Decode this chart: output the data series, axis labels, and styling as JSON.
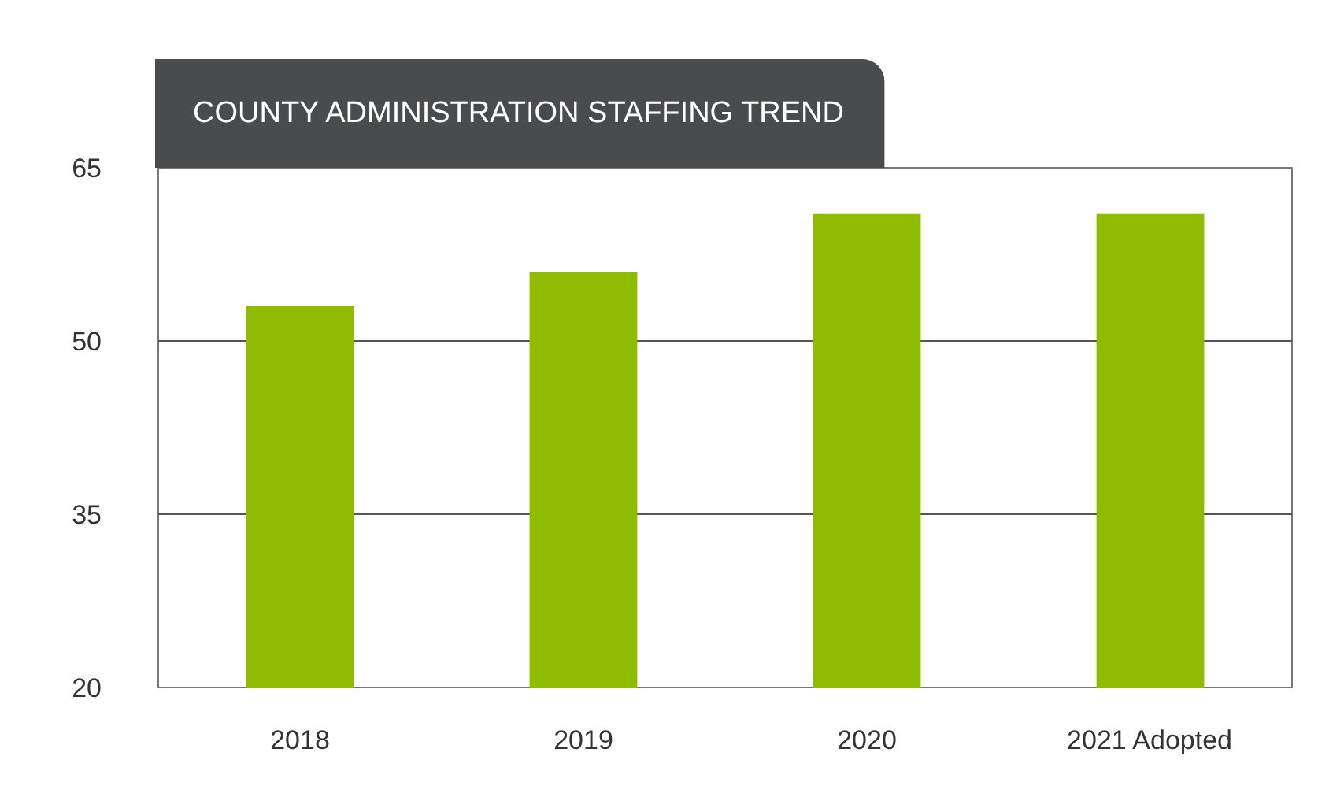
{
  "chart_data": {
    "type": "bar",
    "title": "COUNTY ADMINISTRATION STAFFING TREND",
    "categories": [
      "2018",
      "2019",
      "2020",
      "2021 Adopted"
    ],
    "values": [
      53,
      56,
      61,
      61
    ],
    "color": "#8fbc00",
    "ylim": [
      20,
      65
    ],
    "yticks": [
      20,
      35,
      50,
      65
    ],
    "grid": "y"
  }
}
